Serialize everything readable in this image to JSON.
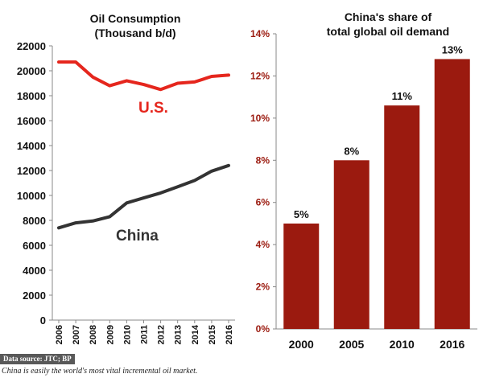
{
  "colors": {
    "us_line": "#e5261d",
    "china_line": "#333333",
    "bar": "#9b1a0f",
    "right_axis": "#9b1a0f"
  },
  "chart_data": [
    {
      "type": "line",
      "title": "Oil Consumption",
      "subtitle": "(Thousand b/d)",
      "x": [
        "2006",
        "2007",
        "2008",
        "2009",
        "2010",
        "2011",
        "2012",
        "2013",
        "2014",
        "2015",
        "2016"
      ],
      "ylim": [
        0,
        22000
      ],
      "yticks": [
        "0",
        "2000",
        "4000",
        "6000",
        "8000",
        "10000",
        "12000",
        "14000",
        "16000",
        "18000",
        "20000",
        "22000"
      ],
      "series": [
        {
          "name": "U.S.",
          "values": [
            20700,
            20700,
            19500,
            18800,
            19200,
            18900,
            18500,
            19000,
            19100,
            19550,
            19650
          ]
        },
        {
          "name": "China",
          "values": [
            7400,
            7800,
            7950,
            8300,
            9400,
            9800,
            10200,
            10700,
            11200,
            11950,
            12400
          ]
        }
      ]
    },
    {
      "type": "bar",
      "title": "China's share of",
      "subtitle": "total global oil demand",
      "categories": [
        "2000",
        "2005",
        "2010",
        "2016"
      ],
      "values": [
        5,
        8,
        10.6,
        12.8
      ],
      "data_labels": [
        "5%",
        "8%",
        "11%",
        "13%"
      ],
      "ylim": [
        0,
        14
      ],
      "yticks": [
        "0%",
        "2%",
        "4%",
        "6%",
        "8%",
        "10%",
        "12%",
        "14%"
      ]
    }
  ],
  "footer": {
    "source": "Data source: JTC; BP",
    "caption": "China is easily the world's most vital incremental oil market."
  }
}
